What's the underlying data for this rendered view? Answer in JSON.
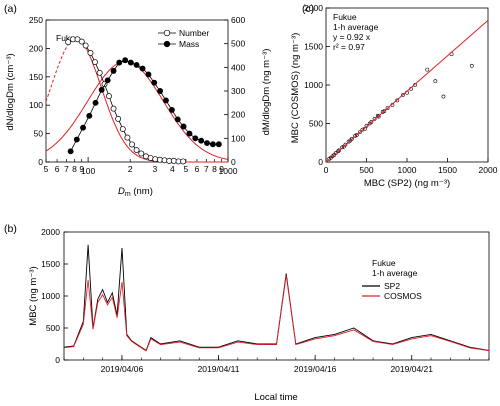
{
  "chart_data": [
    {
      "panel": "(a)",
      "type": "line",
      "annotation": "Fukue",
      "xlabel_main": "D",
      "xlabel_sub": "m",
      "xlabel_unit": " (nm)",
      "ylabel_left": "dN/dlogDm (cm⁻³)",
      "ylabel_right": "dM/dlogDm (ng m⁻³)",
      "x_scale": "log",
      "xlim": [
        50,
        1000
      ],
      "ylim_left": [
        0,
        250
      ],
      "ylim_right": [
        0,
        600
      ],
      "x_minor_tick_labels": [
        {
          "x": 50,
          "label": "5"
        },
        {
          "x": 60,
          "label": "6"
        },
        {
          "x": 70,
          "label": "7"
        },
        {
          "x": 80,
          "label": "8"
        },
        {
          "x": 90,
          "label": "9"
        },
        {
          "x": 200,
          "label": "2"
        },
        {
          "x": 300,
          "label": "3"
        },
        {
          "x": 400,
          "label": "4"
        },
        {
          "x": 500,
          "label": "5"
        },
        {
          "x": 600,
          "label": "6"
        },
        {
          "x": 700,
          "label": "7"
        },
        {
          "x": 800,
          "label": "8"
        },
        {
          "x": 900,
          "label": "9"
        }
      ],
      "x_major_tick_labels": [
        {
          "x": 100,
          "label": "100"
        },
        {
          "x": 1000,
          "label": "1000"
        }
      ],
      "y_left_ticks": [
        0,
        50,
        100,
        150,
        200,
        250
      ],
      "y_right_ticks": [
        0,
        100,
        200,
        300,
        400,
        500,
        600
      ],
      "legend": [
        {
          "name": "Number",
          "marker": "open-circle"
        },
        {
          "name": "Mass",
          "marker": "filled-circle"
        }
      ],
      "series": [
        {
          "name": "Number",
          "axis": "left",
          "x": [
            72,
            78,
            84,
            90,
            96,
            104,
            112,
            121,
            131,
            141,
            152,
            164,
            177,
            191,
            206,
            222,
            240,
            259,
            280,
            302,
            326,
            352,
            380,
            410,
            443,
            478
          ],
          "y": [
            211,
            216,
            216,
            212,
            205,
            192,
            176,
            157,
            137,
            116,
            94,
            76,
            58,
            43,
            31,
            21,
            15,
            10,
            7,
            5,
            4,
            3,
            2,
            2,
            1,
            1
          ]
        },
        {
          "name": "Mass",
          "axis": "right",
          "x": [
            75,
            83,
            92,
            102,
            113,
            125,
            138,
            152,
            167,
            184,
            202,
            222,
            245,
            270,
            297,
            327,
            360,
            397,
            437,
            481,
            530,
            584,
            643,
            708,
            780,
            860
          ],
          "y": [
            45,
            95,
            145,
            195,
            250,
            305,
            345,
            385,
            420,
            430,
            420,
            410,
            395,
            370,
            335,
            300,
            260,
            220,
            180,
            150,
            120,
            100,
            90,
            80,
            75,
            75
          ]
        }
      ],
      "fit_curves": [
        {
          "name": "Number fit",
          "axis": "left",
          "type": "lognormal",
          "peak_x": 82,
          "peak_y": 217,
          "log10_sigma": 0.18,
          "dashed_below_x": 72
        },
        {
          "name": "Mass fit",
          "axis": "right",
          "type": "lognormal",
          "peak_x": 185,
          "peak_y": 425,
          "log10_sigma": 0.27
        }
      ]
    },
    {
      "panel": "(c)",
      "type": "scatter",
      "annotation_lines": [
        "Fukue",
        "1-h average",
        "y = 0.92 x",
        "r² = 0.97"
      ],
      "xlabel": "MBC (SP2) (ng m⁻³)",
      "ylabel": "MBC (COSMOS) (ng m⁻³)",
      "xlim": [
        0,
        2000
      ],
      "ylim": [
        0,
        2000
      ],
      "x_ticks": [
        0,
        500,
        1000,
        1500,
        2000
      ],
      "y_ticks": [
        0,
        500,
        1000,
        1500,
        2000
      ],
      "fit_line": {
        "slope": 0.92,
        "intercept": 0
      },
      "x": [
        40,
        80,
        120,
        160,
        200,
        240,
        280,
        320,
        360,
        420,
        480,
        540,
        600,
        650,
        700,
        760,
        820,
        880,
        950,
        1000,
        1050,
        1100,
        1250,
        1350,
        1450,
        1550,
        1800,
        60,
        100,
        150,
        220,
        300,
        380,
        450,
        500,
        560,
        640,
        720
      ],
      "y": [
        40,
        75,
        115,
        150,
        190,
        225,
        265,
        300,
        340,
        390,
        430,
        500,
        560,
        590,
        650,
        700,
        740,
        800,
        870,
        900,
        950,
        1000,
        1200,
        1050,
        850,
        1400,
        1250,
        55,
        90,
        140,
        200,
        280,
        350,
        420,
        470,
        520,
        600,
        660
      ]
    },
    {
      "panel": "(b)",
      "type": "line",
      "annotation_lines": [
        "Fukue",
        "1-h average"
      ],
      "xlabel": "Local time",
      "ylabel": "MBC (ng m⁻³)",
      "ylim": [
        0,
        2000
      ],
      "y_ticks": [
        0,
        500,
        1000,
        1500,
        2000
      ],
      "x_range_days": [
        "2019/04/03",
        "2019/04/25"
      ],
      "x_tick_labels": [
        "2019/04/06",
        "2019/04/11",
        "2019/04/16",
        "2019/04/21"
      ],
      "series": [
        {
          "name": "SP2",
          "color": "#000000",
          "x": [
            "2019/04/03",
            "2019/04/03 12:00",
            "2019/04/04",
            "2019/04/04 06:00",
            "2019/04/04 12:00",
            "2019/04/04 18:00",
            "2019/04/05",
            "2019/04/05 06:00",
            "2019/04/05 12:00",
            "2019/04/05 18:00",
            "2019/04/06",
            "2019/04/06 06:00",
            "2019/04/06 12:00",
            "2019/04/06 18:00",
            "2019/04/07",
            "2019/04/07 06:00",
            "2019/04/07 12:00",
            "2019/04/08",
            "2019/04/09",
            "2019/04/10",
            "2019/04/11",
            "2019/04/12",
            "2019/04/13",
            "2019/04/14",
            "2019/04/14 12:00",
            "2019/04/15",
            "2019/04/16",
            "2019/04/17",
            "2019/04/18",
            "2019/04/19",
            "2019/04/20",
            "2019/04/21",
            "2019/04/22",
            "2019/04/23",
            "2019/04/24",
            "2019/04/25"
          ],
          "y": [
            200,
            220,
            600,
            1800,
            500,
            950,
            1100,
            900,
            1050,
            700,
            1750,
            400,
            300,
            250,
            200,
            150,
            350,
            250,
            300,
            200,
            200,
            300,
            250,
            250,
            1350,
            250,
            350,
            400,
            500,
            300,
            250,
            350,
            400,
            300,
            200,
            150
          ]
        },
        {
          "name": "COSMOS",
          "color": "#e0202a",
          "x": [
            "2019/04/03",
            "2019/04/03 12:00",
            "2019/04/04",
            "2019/04/04 06:00",
            "2019/04/04 12:00",
            "2019/04/04 18:00",
            "2019/04/05",
            "2019/04/05 06:00",
            "2019/04/05 12:00",
            "2019/04/05 18:00",
            "2019/04/06",
            "2019/04/06 06:00",
            "2019/04/06 12:00",
            "2019/04/06 18:00",
            "2019/04/07",
            "2019/04/07 06:00",
            "2019/04/07 12:00",
            "2019/04/08",
            "2019/04/09",
            "2019/04/10",
            "2019/04/11",
            "2019/04/12",
            "2019/04/13",
            "2019/04/14",
            "2019/04/14 12:00",
            "2019/04/15",
            "2019/04/16",
            "2019/04/17",
            "2019/04/18",
            "2019/04/19",
            "2019/04/20",
            "2019/04/21",
            "2019/04/22",
            "2019/04/23",
            "2019/04/24",
            "2019/04/25"
          ],
          "y": [
            190,
            210,
            560,
            1250,
            480,
            900,
            1020,
            860,
            980,
            660,
            1220,
            380,
            290,
            240,
            190,
            140,
            330,
            240,
            280,
            190,
            190,
            280,
            240,
            240,
            1320,
            240,
            330,
            380,
            470,
            290,
            240,
            330,
            380,
            290,
            190,
            145
          ]
        }
      ],
      "legend": [
        {
          "name": "SP2",
          "color": "#000000"
        },
        {
          "name": "COSMOS",
          "color": "#e0202a"
        }
      ]
    }
  ]
}
